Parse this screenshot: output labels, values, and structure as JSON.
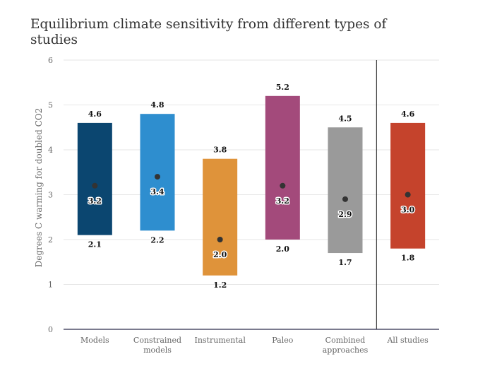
{
  "chart_data": {
    "type": "bar",
    "title": "Equilibrium climate sensitivity from different types of studies",
    "ylabel": "Degrees C warming for doubled CO2",
    "xlabel": "",
    "ylim": [
      0,
      6
    ],
    "yticks": [
      0,
      1,
      2,
      3,
      4,
      5,
      6
    ],
    "grid": true,
    "categories": [
      {
        "label": [
          "Models"
        ],
        "low": 2.1,
        "high": 4.6,
        "mid": 3.2,
        "color": "#0b4670"
      },
      {
        "label": [
          "Constrained",
          "models"
        ],
        "low": 2.2,
        "high": 4.8,
        "mid": 3.4,
        "color": "#2e8ecf"
      },
      {
        "label": [
          "Instrumental"
        ],
        "low": 1.2,
        "high": 3.8,
        "mid": 2.0,
        "color": "#df933a"
      },
      {
        "label": [
          "Paleo"
        ],
        "low": 2.0,
        "high": 5.2,
        "mid": 3.2,
        "color": "#a34a7b"
      },
      {
        "label": [
          "Combined",
          "approaches"
        ],
        "low": 1.7,
        "high": 4.5,
        "mid": 2.9,
        "color": "#9a9a9a"
      },
      {
        "label": [
          "All studies"
        ],
        "low": 1.8,
        "high": 4.6,
        "mid": 3.0,
        "color": "#c5432c"
      }
    ],
    "separator_after_index": 4
  }
}
